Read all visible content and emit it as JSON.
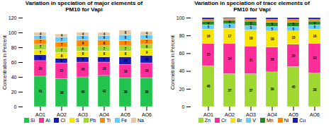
{
  "chart_data": [
    {
      "type": "bar",
      "stacked": true,
      "data_labels": true,
      "legend": "bottom",
      "title": "Variation in speciation of major elements of\nPM10 for Vapi",
      "ylabel": "Concentration in Percent",
      "categories": [
        "AQ1",
        "AQ2",
        "AQ3",
        "AQ4",
        "AQ5",
        "AQ6"
      ],
      "ylim": [
        0,
        120
      ],
      "yticks": [
        0,
        20,
        40,
        60,
        80,
        100,
        120
      ],
      "series": [
        {
          "name": "Si",
          "color": "#22c44e",
          "values": [
            41,
            38,
            40,
            42,
            39,
            39
          ]
        },
        {
          "name": "Al",
          "color": "#ff2d9a",
          "values": [
            21,
            21,
            20,
            18,
            18,
            20
          ]
        },
        {
          "name": "Cl",
          "color": "#1a1ab5",
          "values": [
            8,
            6,
            7,
            7,
            10,
            10
          ]
        },
        {
          "name": "S",
          "color": "#f5e500",
          "values": [
            7,
            8,
            8,
            8,
            8,
            9
          ]
        },
        {
          "name": "Pb",
          "color": "#a0d832",
          "values": [
            7,
            7,
            6,
            7,
            7,
            6
          ]
        },
        {
          "name": "Ti",
          "color": "#ff8c00",
          "values": [
            7,
            7,
            9,
            8,
            7,
            7
          ]
        },
        {
          "name": "Fe",
          "color": "#66ccff",
          "values": [
            5,
            7,
            6,
            6,
            8,
            6
          ]
        },
        {
          "name": "Na",
          "color": "#e8c8a0",
          "values": [
            4,
            4,
            4,
            4,
            6,
            4
          ]
        }
      ]
    },
    {
      "type": "bar",
      "stacked": true,
      "data_labels": true,
      "legend": "bottom",
      "title": "Variation in speciation of trace elements of\nPM10 for Vapi",
      "ylabel": "Concnetration in Percent",
      "categories": [
        "AQ1",
        "AQ2",
        "AQ3",
        "AQ4",
        "AQ5",
        "AQ6"
      ],
      "ylim": [
        0,
        100
      ],
      "yticks": [
        0,
        20,
        40,
        60,
        80,
        100
      ],
      "series": [
        {
          "name": "Zn",
          "color": "#a0d832",
          "values": [
            46,
            37,
            37,
            39,
            45,
            38
          ]
        },
        {
          "name": "Cr",
          "color": "#ff2d9a",
          "values": [
            25,
            34,
            31,
            28,
            25,
            33
          ]
        },
        {
          "name": "Br",
          "color": "#f5e500",
          "values": [
            16,
            17,
            18,
            18,
            15,
            16
          ]
        },
        {
          "name": "V",
          "color": "#66ccff",
          "values": [
            5,
            5,
            5,
            5,
            5,
            5
          ]
        },
        {
          "name": "Mn",
          "color": "#228B22",
          "values": [
            4,
            4,
            5,
            5,
            5,
            4
          ]
        },
        {
          "name": "Ni",
          "color": "#ff8c00",
          "values": [
            2,
            2,
            2,
            3,
            3,
            2
          ],
          "data_labels": false
        },
        {
          "name": "Cu",
          "color": "#1a1ab5",
          "values": [
            2,
            1,
            2,
            2,
            2,
            2
          ],
          "data_labels": false
        }
      ]
    }
  ]
}
